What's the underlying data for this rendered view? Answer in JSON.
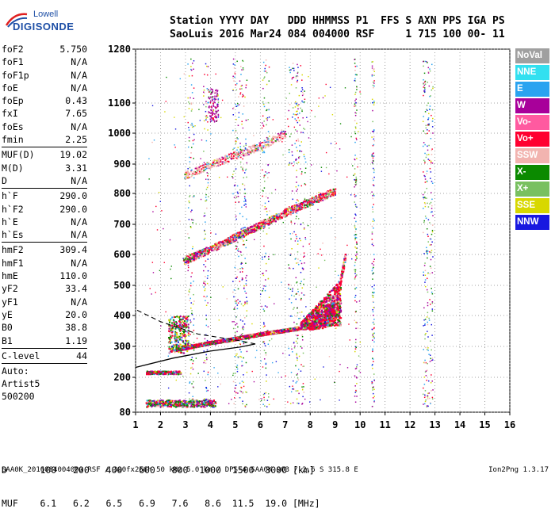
{
  "logo": {
    "line1": "Lowell",
    "line2": "DIGISONDE"
  },
  "header": {
    "labels": "Station YYYY DAY   DDD HHMMSS P1  FFS S AXN PPS IGA PS",
    "values": "SaoLuis 2016 Mar24 084 004000 RSF     1 715 100 00- 11"
  },
  "params": {
    "group1": [
      {
        "k": "foF2",
        "v": "5.750"
      },
      {
        "k": "foF1",
        "v": "N/A"
      },
      {
        "k": "foF1p",
        "v": "N/A"
      },
      {
        "k": "foE",
        "v": "N/A"
      },
      {
        "k": "foEp",
        "v": "0.43"
      },
      {
        "k": "fxI",
        "v": "7.65"
      },
      {
        "k": "foEs",
        "v": "N/A"
      },
      {
        "k": "fmin",
        "v": "2.25"
      }
    ],
    "group2": [
      {
        "k": "MUF(D)",
        "v": "19.02"
      },
      {
        "k": "M(D)",
        "v": "3.31"
      },
      {
        "k": "D",
        "v": "N/A"
      }
    ],
    "group3": [
      {
        "k": "h`F",
        "v": "290.0"
      },
      {
        "k": "h`F2",
        "v": "290.0"
      },
      {
        "k": "h`E",
        "v": "N/A"
      },
      {
        "k": "h`Es",
        "v": "N/A"
      }
    ],
    "group4": [
      {
        "k": "hmF2",
        "v": "309.4"
      },
      {
        "k": "hmF1",
        "v": "N/A"
      },
      {
        "k": "hmE",
        "v": "110.0"
      },
      {
        "k": "yF2",
        "v": "33.4"
      },
      {
        "k": "yF1",
        "v": "N/A"
      },
      {
        "k": "yE",
        "v": "20.0"
      },
      {
        "k": "B0",
        "v": "38.8"
      },
      {
        "k": "B1",
        "v": "1.19"
      }
    ],
    "group5": [
      {
        "k": "C-level",
        "v": "44"
      }
    ],
    "auto": [
      "Auto:",
      "Artist5",
      "500200"
    ]
  },
  "legend": [
    {
      "label": "NoVal",
      "color": "#a0a0a0"
    },
    {
      "label": "NNE",
      "color": "#33e0f0"
    },
    {
      "label": "E",
      "color": "#2aa3f0"
    },
    {
      "label": "W",
      "color": "#a8009a"
    },
    {
      "label": "Vo-",
      "color": "#ff5aa0"
    },
    {
      "label": "Vo+",
      "color": "#ff0030"
    },
    {
      "label": "SSW",
      "color": "#f2b4b0"
    },
    {
      "label": "X-",
      "color": "#0b8a00"
    },
    {
      "label": "X+",
      "color": "#79c060"
    },
    {
      "label": "SSE",
      "color": "#d8d800"
    },
    {
      "label": "NNW",
      "color": "#1818e0"
    }
  ],
  "dmuf": {
    "d_line": "D      100   200   400   600   800  1000  1500  3000 [km]",
    "muf_line": "MUF    6.1   6.2   6.5   6.9   7.6   8.6  11.5  19.0 [MHz]"
  },
  "footer": "SAA0K_2016084004000.RSF / 300fx256h 50 kHz 5.0 km / DPS-4 SAA0K 903 / 2.6 S 315.8 E",
  "version": "Ion2Png 1.3.17",
  "chart_data": {
    "type": "scatter",
    "x_ticks": [
      1,
      2,
      3,
      4,
      5,
      6,
      7,
      8,
      9,
      10,
      11,
      12,
      13,
      14,
      15,
      16
    ],
    "y_ticks": [
      80,
      200,
      300,
      400,
      500,
      600,
      700,
      800,
      900,
      1000,
      1100,
      1280
    ],
    "xlim": [
      1,
      16
    ],
    "ylim": [
      80,
      1280
    ],
    "grid": true,
    "series": [
      {
        "name": "O-trace F",
        "points": [
          [
            2.6,
            290
          ],
          [
            3,
            296
          ],
          [
            4,
            312
          ],
          [
            5,
            325
          ],
          [
            6,
            340
          ],
          [
            7,
            352
          ],
          [
            8,
            365
          ],
          [
            8.5,
            378
          ],
          [
            9,
            400
          ]
        ]
      },
      {
        "name": "X-trace F",
        "points": [
          [
            9,
            440
          ],
          [
            9.15,
            500
          ],
          [
            9.3,
            560
          ],
          [
            9.4,
            600
          ]
        ]
      },
      {
        "name": "2nd hop",
        "points": [
          [
            2.9,
            580
          ],
          [
            4,
            620
          ],
          [
            5,
            660
          ],
          [
            6,
            700
          ],
          [
            7,
            740
          ],
          [
            8,
            775
          ],
          [
            9,
            810
          ]
        ]
      },
      {
        "name": "3rd hop",
        "points": [
          [
            2.9,
            860
          ],
          [
            4,
            900
          ],
          [
            5,
            930
          ],
          [
            6,
            960
          ],
          [
            7,
            1000
          ]
        ]
      },
      {
        "name": "E layer",
        "points": [
          [
            1.4,
            215
          ],
          [
            2.8,
            215
          ]
        ]
      },
      {
        "name": "Low band",
        "points": [
          [
            1.4,
            110
          ],
          [
            4.2,
            110
          ]
        ]
      },
      {
        "name": "Profile",
        "points": [
          [
            1,
            232
          ],
          [
            2.5,
            262
          ],
          [
            4,
            285
          ],
          [
            5.2,
            298
          ],
          [
            5.8,
            308
          ],
          [
            5.2,
            318
          ],
          [
            3.5,
            340
          ],
          [
            2,
            380
          ],
          [
            1,
            420
          ]
        ]
      }
    ],
    "colors_used": [
      "#ff0030",
      "#a8009a",
      "#0b8a00",
      "#f2b4b0",
      "#2aa3f0",
      "#d8d800",
      "#79c060",
      "#1818e0"
    ]
  }
}
